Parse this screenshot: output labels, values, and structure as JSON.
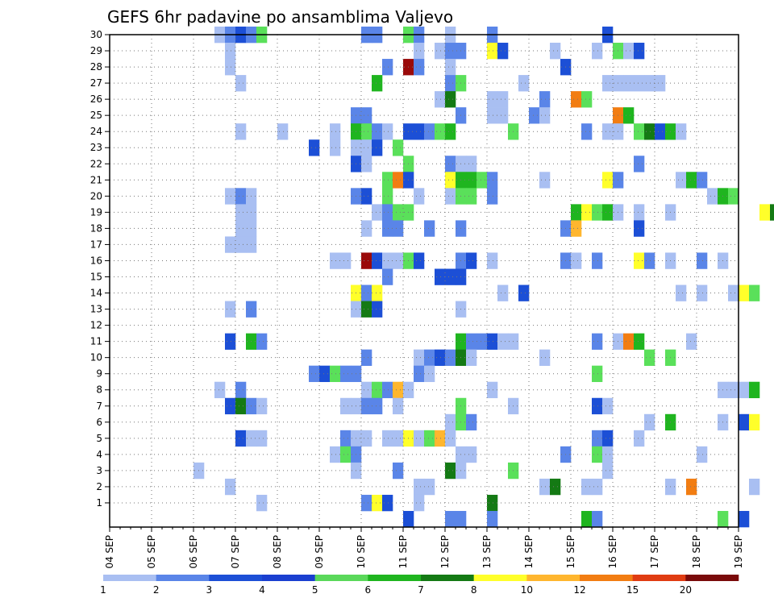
{
  "chart_data": {
    "type": "heatmap",
    "title": "GEFS 6hr padavine po ansamblima Valjevo",
    "xlabel": "",
    "ylabel": "",
    "x_tick_labels": [
      "04 SEP",
      "05 SEP",
      "06 SEP",
      "07 SEP",
      "08 SEP",
      "09 SEP",
      "10 SEP",
      "11 SEP",
      "12 SEP",
      "13 SEP",
      "14 SEP",
      "15 SEP",
      "16 SEP",
      "17 SEP",
      "18 SEP",
      "19 SEP"
    ],
    "y_tick_labels": [
      "1",
      "2",
      "3",
      "4",
      "5",
      "6",
      "7",
      "8",
      "9",
      "10",
      "11",
      "12",
      "13",
      "14",
      "15",
      "16",
      "17",
      "18",
      "19",
      "20",
      "21",
      "22",
      "23",
      "24",
      "25",
      "26",
      "27",
      "28",
      "29",
      "30"
    ],
    "ylim": [
      0,
      30
    ],
    "grid": true,
    "colorbar": {
      "labels": [
        "1",
        "2",
        "3",
        "4",
        "5",
        "6",
        "7",
        "8",
        "10",
        "12",
        "15",
        "20"
      ],
      "colors": [
        "#a9bff2",
        "#5a85e8",
        "#1c4fd6",
        "#1a3fd0",
        "#5ad85a",
        "#1fb51f",
        "#147a14",
        "#ffff2a",
        "#ffb62e",
        "#f27d12",
        "#e03c12",
        "#7a0a0a"
      ]
    },
    "value_colors": {
      "1": "#a9bff2",
      "2": "#5a85e8",
      "3": "#1c4fd6",
      "4": "#5ae05a",
      "5": "#1fb51f",
      "6": "#147a14",
      "7": "#ffff2a",
      "8": "#ffb62e",
      "9": "#f27d12",
      "10": "#e03c12",
      "11": "#9a0a0a"
    },
    "cells": [
      [
        "06 SEP 12",
        30,
        1
      ],
      [
        "06 SEP 18",
        30,
        2
      ],
      [
        "07 SEP 00",
        30,
        3
      ],
      [
        "07 SEP 06",
        30,
        2
      ],
      [
        "07 SEP 12",
        30,
        4
      ],
      [
        "10 SEP 00",
        30,
        2
      ],
      [
        "10 SEP 06",
        30,
        2
      ],
      [
        "11 SEP 00",
        30,
        4
      ],
      [
        "11 SEP 06",
        30,
        2
      ],
      [
        "12 SEP 00",
        30,
        1
      ],
      [
        "13 SEP 00",
        30,
        2
      ],
      [
        "15 SEP 18",
        30,
        3
      ],
      [
        "06 SEP 18",
        29,
        1
      ],
      [
        "11 SEP 06",
        29,
        1
      ],
      [
        "11 SEP 18",
        29,
        1
      ],
      [
        "12 SEP 00",
        29,
        2
      ],
      [
        "12 SEP 06",
        29,
        2
      ],
      [
        "13 SEP 00",
        29,
        7
      ],
      [
        "13 SEP 06",
        29,
        3
      ],
      [
        "14 SEP 12",
        29,
        1
      ],
      [
        "15 SEP 12",
        29,
        1
      ],
      [
        "16 SEP 00",
        29,
        4
      ],
      [
        "16 SEP 06",
        29,
        1
      ],
      [
        "16 SEP 12",
        29,
        3
      ],
      [
        "06 SEP 18",
        28,
        1
      ],
      [
        "10 SEP 12",
        28,
        2
      ],
      [
        "11 SEP 00",
        28,
        11
      ],
      [
        "11 SEP 06",
        28,
        2
      ],
      [
        "12 SEP 00",
        28,
        1
      ],
      [
        "14 SEP 18",
        28,
        3
      ],
      [
        "07 SEP 00",
        27,
        1
      ],
      [
        "10 SEP 06",
        27,
        5
      ],
      [
        "12 SEP 00",
        27,
        2
      ],
      [
        "12 SEP 06",
        27,
        4
      ],
      [
        "13 SEP 18",
        27,
        1
      ],
      [
        "15 SEP 18",
        27,
        1
      ],
      [
        "16 SEP 00",
        27,
        1
      ],
      [
        "16 SEP 06",
        27,
        1
      ],
      [
        "16 SEP 12",
        27,
        1
      ],
      [
        "16 SEP 18",
        27,
        1
      ],
      [
        "17 SEP 00",
        27,
        1
      ],
      [
        "11 SEP 18",
        26,
        1
      ],
      [
        "12 SEP 00",
        26,
        6
      ],
      [
        "13 SEP 00",
        26,
        1
      ],
      [
        "13 SEP 06",
        26,
        1
      ],
      [
        "14 SEP 06",
        26,
        2
      ],
      [
        "15 SEP 00",
        26,
        9
      ],
      [
        "15 SEP 06",
        26,
        4
      ],
      [
        "09 SEP 18",
        25,
        2
      ],
      [
        "10 SEP 00",
        25,
        2
      ],
      [
        "12 SEP 06",
        25,
        2
      ],
      [
        "13 SEP 00",
        25,
        1
      ],
      [
        "13 SEP 06",
        25,
        1
      ],
      [
        "14 SEP 00",
        25,
        2
      ],
      [
        "14 SEP 06",
        25,
        1
      ],
      [
        "16 SEP 00",
        25,
        9
      ],
      [
        "16 SEP 06",
        25,
        5
      ],
      [
        "07 SEP 00",
        24,
        1
      ],
      [
        "08 SEP 00",
        24,
        1
      ],
      [
        "09 SEP 06",
        24,
        1
      ],
      [
        "09 SEP 18",
        24,
        5
      ],
      [
        "10 SEP 00",
        24,
        4
      ],
      [
        "10 SEP 06",
        24,
        2
      ],
      [
        "10 SEP 12",
        24,
        1
      ],
      [
        "11 SEP 00",
        24,
        3
      ],
      [
        "11 SEP 06",
        24,
        3
      ],
      [
        "11 SEP 12",
        24,
        2
      ],
      [
        "11 SEP 18",
        24,
        4
      ],
      [
        "12 SEP 00",
        24,
        5
      ],
      [
        "13 SEP 12",
        24,
        4
      ],
      [
        "15 SEP 06",
        24,
        2
      ],
      [
        "15 SEP 18",
        24,
        1
      ],
      [
        "16 SEP 00",
        24,
        1
      ],
      [
        "16 SEP 12",
        24,
        4
      ],
      [
        "16 SEP 18",
        24,
        6
      ],
      [
        "17 SEP 00",
        24,
        3
      ],
      [
        "17 SEP 06",
        24,
        5
      ],
      [
        "17 SEP 12",
        24,
        1
      ],
      [
        "08 SEP 18",
        23,
        3
      ],
      [
        "09 SEP 06",
        23,
        1
      ],
      [
        "09 SEP 18",
        23,
        1
      ],
      [
        "10 SEP 00",
        23,
        1
      ],
      [
        "10 SEP 06",
        23,
        3
      ],
      [
        "10 SEP 18",
        23,
        4
      ],
      [
        "09 SEP 18",
        22,
        3
      ],
      [
        "10 SEP 00",
        22,
        1
      ],
      [
        "11 SEP 00",
        22,
        4
      ],
      [
        "12 SEP 00",
        22,
        2
      ],
      [
        "12 SEP 06",
        22,
        1
      ],
      [
        "12 SEP 12",
        22,
        1
      ],
      [
        "16 SEP 12",
        22,
        2
      ],
      [
        "10 SEP 12",
        21,
        4
      ],
      [
        "10 SEP 18",
        21,
        9
      ],
      [
        "11 SEP 00",
        21,
        3
      ],
      [
        "12 SEP 00",
        21,
        7
      ],
      [
        "12 SEP 06",
        21,
        5
      ],
      [
        "12 SEP 12",
        21,
        5
      ],
      [
        "12 SEP 18",
        21,
        4
      ],
      [
        "13 SEP 00",
        21,
        2
      ],
      [
        "14 SEP 06",
        21,
        1
      ],
      [
        "15 SEP 18",
        21,
        7
      ],
      [
        "16 SEP 00",
        21,
        2
      ],
      [
        "17 SEP 12",
        21,
        1
      ],
      [
        "17 SEP 18",
        21,
        5
      ],
      [
        "18 SEP 00",
        21,
        2
      ],
      [
        "06 SEP 18",
        20,
        1
      ],
      [
        "07 SEP 00",
        20,
        2
      ],
      [
        "07 SEP 06",
        20,
        1
      ],
      [
        "09 SEP 18",
        20,
        2
      ],
      [
        "10 SEP 00",
        20,
        3
      ],
      [
        "10 SEP 12",
        20,
        4
      ],
      [
        "11 SEP 06",
        20,
        1
      ],
      [
        "12 SEP 00",
        20,
        1
      ],
      [
        "12 SEP 06",
        20,
        4
      ],
      [
        "12 SEP 12",
        20,
        4
      ],
      [
        "13 SEP 00",
        20,
        2
      ],
      [
        "18 SEP 06",
        20,
        1
      ],
      [
        "18 SEP 12",
        20,
        5
      ],
      [
        "18 SEP 18",
        20,
        4
      ],
      [
        "07 SEP 00",
        19,
        1
      ],
      [
        "07 SEP 06",
        19,
        1
      ],
      [
        "10 SEP 06",
        19,
        1
      ],
      [
        "10 SEP 12",
        19,
        2
      ],
      [
        "10 SEP 18",
        19,
        4
      ],
      [
        "11 SEP 00",
        19,
        4
      ],
      [
        "15 SEP 00",
        19,
        5
      ],
      [
        "15 SEP 06",
        19,
        7
      ],
      [
        "15 SEP 12",
        19,
        4
      ],
      [
        "15 SEP 18",
        19,
        5
      ],
      [
        "16 SEP 00",
        19,
        1
      ],
      [
        "16 SEP 12",
        19,
        1
      ],
      [
        "17 SEP 06",
        19,
        1
      ],
      [
        "19 SEP 12",
        19,
        7
      ],
      [
        "19 SEP 18",
        19,
        6
      ],
      [
        "07 SEP 00",
        18,
        1
      ],
      [
        "07 SEP 06",
        18,
        1
      ],
      [
        "10 SEP 00",
        18,
        1
      ],
      [
        "10 SEP 12",
        18,
        2
      ],
      [
        "10 SEP 18",
        18,
        2
      ],
      [
        "11 SEP 12",
        18,
        2
      ],
      [
        "12 SEP 06",
        18,
        2
      ],
      [
        "14 SEP 18",
        18,
        2
      ],
      [
        "15 SEP 00",
        18,
        8
      ],
      [
        "16 SEP 12",
        18,
        3
      ],
      [
        "06 SEP 18",
        17,
        1
      ],
      [
        "07 SEP 00",
        17,
        1
      ],
      [
        "07 SEP 06",
        17,
        1
      ],
      [
        "09 SEP 06",
        16,
        1
      ],
      [
        "09 SEP 12",
        16,
        1
      ],
      [
        "10 SEP 00",
        16,
        11
      ],
      [
        "10 SEP 06",
        16,
        3
      ],
      [
        "10 SEP 12",
        16,
        1
      ],
      [
        "10 SEP 18",
        16,
        1
      ],
      [
        "11 SEP 00",
        16,
        4
      ],
      [
        "11 SEP 06",
        16,
        3
      ],
      [
        "12 SEP 06",
        16,
        2
      ],
      [
        "12 SEP 12",
        16,
        3
      ],
      [
        "13 SEP 00",
        16,
        1
      ],
      [
        "14 SEP 18",
        16,
        2
      ],
      [
        "15 SEP 00",
        16,
        1
      ],
      [
        "15 SEP 12",
        16,
        2
      ],
      [
        "16 SEP 12",
        16,
        7
      ],
      [
        "16 SEP 18",
        16,
        2
      ],
      [
        "17 SEP 06",
        16,
        1
      ],
      [
        "18 SEP 00",
        16,
        2
      ],
      [
        "18 SEP 12",
        16,
        1
      ],
      [
        "10 SEP 12",
        15,
        2
      ],
      [
        "11 SEP 18",
        15,
        3
      ],
      [
        "12 SEP 00",
        15,
        3
      ],
      [
        "12 SEP 06",
        15,
        3
      ],
      [
        "09 SEP 18",
        14,
        7
      ],
      [
        "10 SEP 00",
        14,
        2
      ],
      [
        "10 SEP 06",
        14,
        7
      ],
      [
        "13 SEP 06",
        14,
        1
      ],
      [
        "13 SEP 18",
        14,
        3
      ],
      [
        "17 SEP 12",
        14,
        1
      ],
      [
        "18 SEP 00",
        14,
        1
      ],
      [
        "18 SEP 18",
        14,
        1
      ],
      [
        "19 SEP 00",
        14,
        7
      ],
      [
        "19 SEP 06",
        14,
        4
      ],
      [
        "06 SEP 18",
        13,
        1
      ],
      [
        "07 SEP 06",
        13,
        2
      ],
      [
        "09 SEP 18",
        13,
        1
      ],
      [
        "10 SEP 00",
        13,
        6
      ],
      [
        "10 SEP 06",
        13,
        3
      ],
      [
        "12 SEP 06",
        13,
        1
      ],
      [
        "12 SEP 06",
        11,
        5
      ],
      [
        "12 SEP 12",
        11,
        2
      ],
      [
        "12 SEP 18",
        11,
        2
      ],
      [
        "13 SEP 00",
        11,
        3
      ],
      [
        "13 SEP 06",
        11,
        1
      ],
      [
        "13 SEP 12",
        11,
        1
      ],
      [
        "15 SEP 12",
        11,
        2
      ],
      [
        "16 SEP 00",
        11,
        1
      ],
      [
        "16 SEP 06",
        11,
        9
      ],
      [
        "16 SEP 12",
        11,
        5
      ],
      [
        "17 SEP 18",
        11,
        1
      ],
      [
        "06 SEP 18",
        11,
        3
      ],
      [
        "07 SEP 06",
        11,
        5
      ],
      [
        "07 SEP 12",
        11,
        2
      ],
      [
        "10 SEP 00",
        10,
        2
      ],
      [
        "11 SEP 06",
        10,
        1
      ],
      [
        "11 SEP 12",
        10,
        2
      ],
      [
        "11 SEP 18",
        10,
        3
      ],
      [
        "12 SEP 00",
        10,
        2
      ],
      [
        "12 SEP 06",
        10,
        6
      ],
      [
        "12 SEP 12",
        10,
        1
      ],
      [
        "14 SEP 06",
        10,
        1
      ],
      [
        "16 SEP 18",
        10,
        4
      ],
      [
        "17 SEP 06",
        10,
        4
      ],
      [
        "08 SEP 18",
        9,
        2
      ],
      [
        "09 SEP 00",
        9,
        3
      ],
      [
        "09 SEP 06",
        9,
        4
      ],
      [
        "09 SEP 12",
        9,
        2
      ],
      [
        "09 SEP 18",
        9,
        2
      ],
      [
        "11 SEP 06",
        9,
        2
      ],
      [
        "11 SEP 12",
        9,
        1
      ],
      [
        "15 SEP 12",
        9,
        4
      ],
      [
        "06 SEP 12",
        8,
        1
      ],
      [
        "07 SEP 00",
        8,
        2
      ],
      [
        "10 SEP 00",
        8,
        1
      ],
      [
        "10 SEP 06",
        8,
        4
      ],
      [
        "10 SEP 12",
        8,
        2
      ],
      [
        "10 SEP 18",
        8,
        8
      ],
      [
        "11 SEP 00",
        8,
        1
      ],
      [
        "13 SEP 00",
        8,
        1
      ],
      [
        "18 SEP 12",
        8,
        1
      ],
      [
        "18 SEP 18",
        8,
        1
      ],
      [
        "19 SEP 00",
        8,
        1
      ],
      [
        "19 SEP 06",
        8,
        5
      ],
      [
        "06 SEP 18",
        7,
        3
      ],
      [
        "07 SEP 00",
        7,
        6
      ],
      [
        "07 SEP 06",
        7,
        2
      ],
      [
        "07 SEP 12",
        7,
        1
      ],
      [
        "09 SEP 12",
        7,
        1
      ],
      [
        "09 SEP 18",
        7,
        1
      ],
      [
        "10 SEP 00",
        7,
        2
      ],
      [
        "10 SEP 06",
        7,
        2
      ],
      [
        "10 SEP 18",
        7,
        1
      ],
      [
        "12 SEP 06",
        7,
        4
      ],
      [
        "13 SEP 12",
        7,
        1
      ],
      [
        "15 SEP 12",
        7,
        3
      ],
      [
        "15 SEP 18",
        7,
        1
      ],
      [
        "12 SEP 00",
        6,
        1
      ],
      [
        "12 SEP 06",
        6,
        4
      ],
      [
        "12 SEP 12",
        6,
        2
      ],
      [
        "16 SEP 18",
        6,
        1
      ],
      [
        "17 SEP 06",
        6,
        5
      ],
      [
        "18 SEP 12",
        6,
        1
      ],
      [
        "19 SEP 00",
        6,
        3
      ],
      [
        "19 SEP 06",
        6,
        7
      ],
      [
        "07 SEP 00",
        5,
        3
      ],
      [
        "07 SEP 06",
        5,
        1
      ],
      [
        "07 SEP 12",
        5,
        1
      ],
      [
        "09 SEP 12",
        5,
        2
      ],
      [
        "09 SEP 18",
        5,
        1
      ],
      [
        "10 SEP 00",
        5,
        1
      ],
      [
        "10 SEP 12",
        5,
        1
      ],
      [
        "10 SEP 18",
        5,
        1
      ],
      [
        "11 SEP 00",
        5,
        7
      ],
      [
        "11 SEP 06",
        5,
        1
      ],
      [
        "11 SEP 12",
        5,
        4
      ],
      [
        "11 SEP 18",
        5,
        8
      ],
      [
        "12 SEP 00",
        5,
        1
      ],
      [
        "15 SEP 12",
        5,
        2
      ],
      [
        "15 SEP 18",
        5,
        3
      ],
      [
        "16 SEP 12",
        5,
        1
      ],
      [
        "09 SEP 06",
        4,
        1
      ],
      [
        "09 SEP 12",
        4,
        4
      ],
      [
        "09 SEP 18",
        4,
        2
      ],
      [
        "12 SEP 06",
        4,
        1
      ],
      [
        "12 SEP 12",
        4,
        1
      ],
      [
        "14 SEP 18",
        4,
        2
      ],
      [
        "15 SEP 12",
        4,
        4
      ],
      [
        "15 SEP 18",
        4,
        1
      ],
      [
        "18 SEP 00",
        4,
        1
      ],
      [
        "06 SEP 00",
        3,
        1
      ],
      [
        "09 SEP 18",
        3,
        1
      ],
      [
        "10 SEP 18",
        3,
        2
      ],
      [
        "12 SEP 00",
        3,
        6
      ],
      [
        "12 SEP 06",
        3,
        1
      ],
      [
        "13 SEP 12",
        3,
        4
      ],
      [
        "15 SEP 18",
        3,
        1
      ],
      [
        "06 SEP 18",
        2,
        1
      ],
      [
        "11 SEP 06",
        2,
        1
      ],
      [
        "11 SEP 12",
        2,
        1
      ],
      [
        "14 SEP 06",
        2,
        1
      ],
      [
        "14 SEP 12",
        2,
        6
      ],
      [
        "15 SEP 06",
        2,
        1
      ],
      [
        "15 SEP 12",
        2,
        1
      ],
      [
        "17 SEP 06",
        2,
        1
      ],
      [
        "17 SEP 18",
        2,
        9
      ],
      [
        "19 SEP 06",
        2,
        1
      ],
      [
        "07 SEP 12",
        1,
        1
      ],
      [
        "10 SEP 00",
        1,
        2
      ],
      [
        "10 SEP 06",
        1,
        7
      ],
      [
        "10 SEP 12",
        1,
        3
      ],
      [
        "11 SEP 06",
        1,
        1
      ],
      [
        "13 SEP 00",
        1,
        6
      ],
      [
        "11 SEP 00",
        0,
        3
      ],
      [
        "12 SEP 00",
        0,
        2
      ],
      [
        "12 SEP 06",
        0,
        2
      ],
      [
        "13 SEP 00",
        0,
        2
      ],
      [
        "15 SEP 06",
        0,
        5
      ],
      [
        "15 SEP 12",
        0,
        2
      ],
      [
        "18 SEP 12",
        0,
        4
      ],
      [
        "19 SEP 00",
        0,
        3
      ]
    ]
  }
}
